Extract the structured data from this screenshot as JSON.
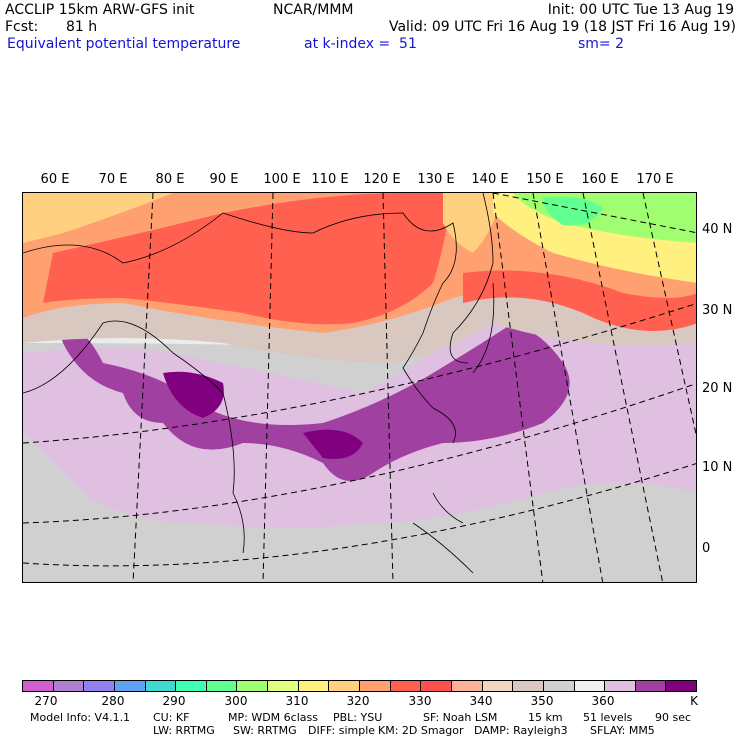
{
  "header": {
    "model": "ACCLIP 15km ARW-GFS init",
    "org": "NCAR/MMM",
    "init": "Init: 00 UTC Tue 13 Aug 19",
    "fcst_label": "Fcst:",
    "fcst_value": "81 h",
    "valid": "Valid: 09 UTC Fri 16 Aug 19 (18 JST Fri 16 Aug 19)",
    "field": "Equivalent potential temperature",
    "level": "at k-index =  51",
    "smooth": "sm= 2"
  },
  "map": {
    "lon_labels": [
      "60 E",
      "70 E",
      "80 E",
      "90 E",
      "100 E",
      "110 E",
      "120 E",
      "130 E",
      "140 E",
      "150 E",
      "160 E",
      "170 E"
    ],
    "lat_labels": [
      "40 N",
      "30 N",
      "20 N",
      "10 N",
      "0"
    ]
  },
  "colorbar": {
    "colors": [
      "#d060d0",
      "#b080d0",
      "#9080f0",
      "#60a0f0",
      "#40d8d0",
      "#40ffb0",
      "#60ff90",
      "#a0ff70",
      "#e0ff80",
      "#fff080",
      "#ffd080",
      "#ffa070",
      "#ff6050",
      "#ff5050",
      "#ffb098",
      "#f0d8c0",
      "#d8c8c0",
      "#d0d0d0",
      "#f0f0f0",
      "#e0c0e0",
      "#a040a0",
      "#800080"
    ],
    "labels": [
      "270",
      "280",
      "290",
      "300",
      "310",
      "320",
      "330",
      "340",
      "350",
      "360"
    ],
    "unit": "K"
  },
  "footer": {
    "line1": [
      "Model Info: V4.1.1",
      "CU: KF",
      "MP: WDM 6class",
      "PBL: YSU",
      "SF: Noah LSM",
      "15 km",
      "51 levels",
      "90 sec"
    ],
    "line2": [
      "LW: RRTMG",
      "SW: RRTMG",
      "DIFF: simple",
      "KM: 2D Smagor",
      "DAMP: Rayleigh3",
      "SFLAY: MM5"
    ]
  }
}
